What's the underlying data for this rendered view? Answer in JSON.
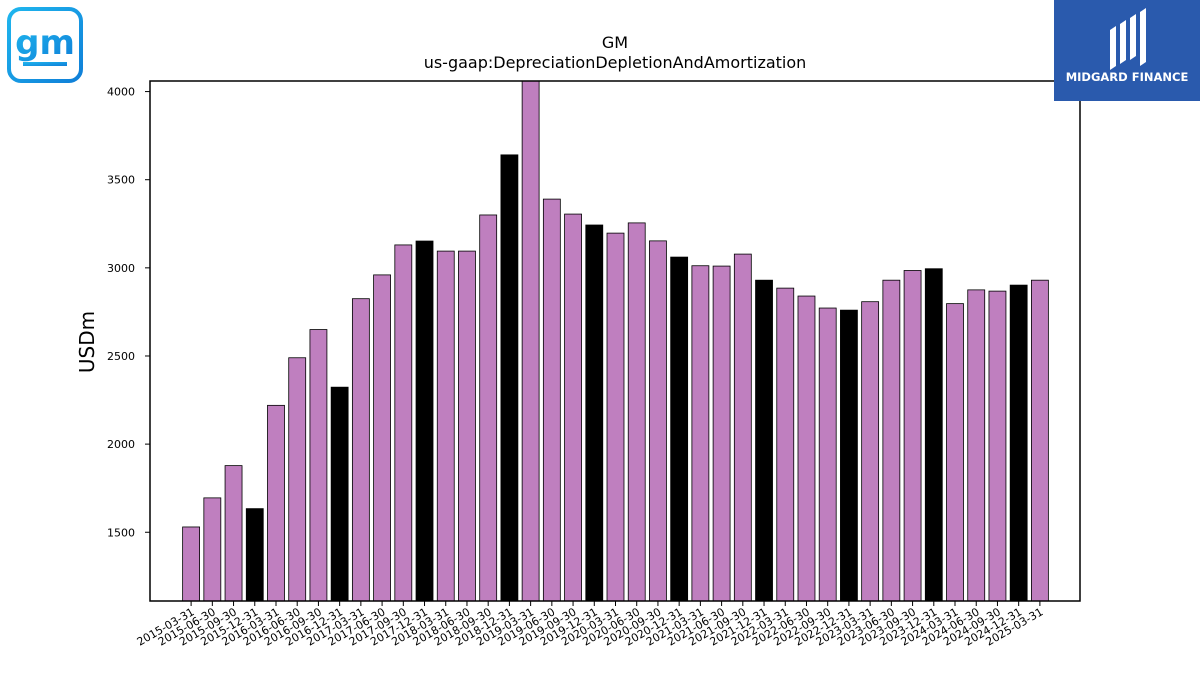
{
  "logos": {
    "company_logo_text": "gm",
    "brand_name": "MIDGARD FINANCE"
  },
  "colors": {
    "bar_purple": "#bf7fbf",
    "bar_black": "#000000",
    "gm_logo_blue": "#1aa7e8",
    "midgard_blue": "#2a5aad"
  },
  "chart_data": {
    "type": "bar",
    "title": "GM",
    "subtitle": "us-gaap:DepreciationDepletionAndAmortization",
    "xlabel": "",
    "ylabel": "USDm",
    "ylim": [
      1110,
      4060
    ],
    "yticks": [
      1500,
      2000,
      2500,
      3000,
      3500,
      4000
    ],
    "grid": false,
    "categories": [
      "2015-03-31",
      "2015-06-30",
      "2015-09-30",
      "2015-12-31",
      "2016-03-31",
      "2016-06-30",
      "2016-09-30",
      "2016-12-31",
      "2017-03-31",
      "2017-06-30",
      "2017-09-30",
      "2017-12-31",
      "2018-03-31",
      "2018-06-30",
      "2018-09-30",
      "2018-12-31",
      "2019-03-31",
      "2019-06-30",
      "2019-09-30",
      "2019-12-31",
      "2020-03-31",
      "2020-06-30",
      "2020-09-30",
      "2020-12-31",
      "2021-03-31",
      "2021-06-30",
      "2021-09-30",
      "2021-12-31",
      "2022-03-31",
      "2022-06-30",
      "2022-09-30",
      "2022-12-31",
      "2023-03-31",
      "2023-06-30",
      "2023-09-30",
      "2023-12-31",
      "2024-03-31",
      "2024-06-30",
      "2024-09-30",
      "2024-12-31",
      "2025-03-31"
    ],
    "values": [
      1530,
      1695,
      1878,
      1634,
      2220,
      2490,
      2650,
      2323,
      2825,
      2960,
      3130,
      3152,
      3095,
      3095,
      3300,
      3641,
      4080,
      3390,
      3305,
      3243,
      3197,
      3255,
      3153,
      3061,
      3012,
      3010,
      3078,
      2930,
      2885,
      2840,
      2772,
      2760,
      2808,
      2930,
      2985,
      2995,
      2797,
      2875,
      2868,
      2902,
      2930
    ],
    "highlight_quarter": "12-31"
  }
}
